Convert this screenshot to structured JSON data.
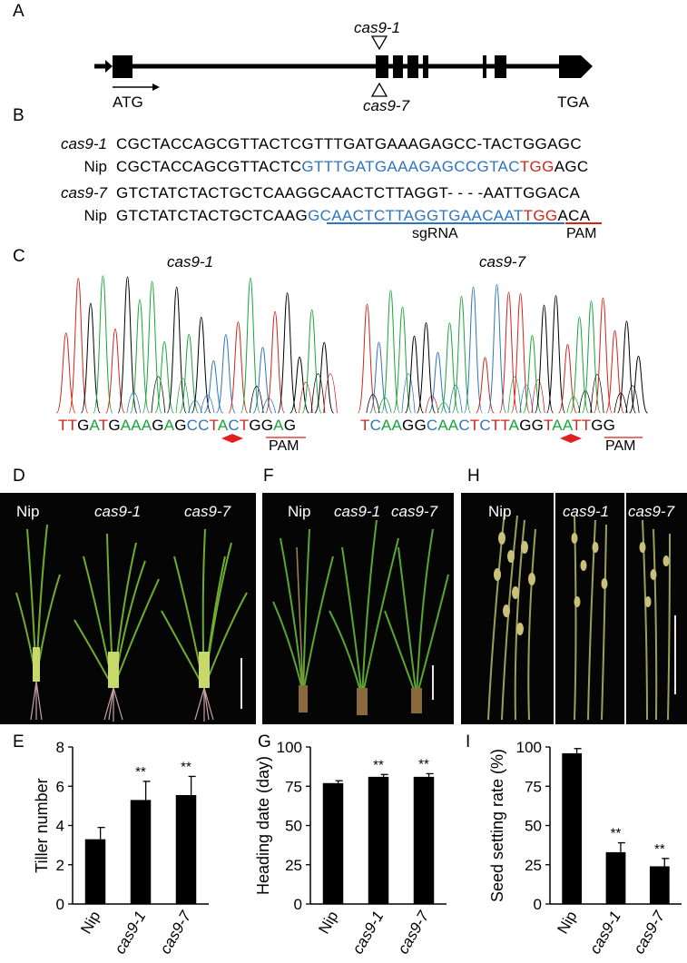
{
  "panels": {
    "A": "A",
    "B": "B",
    "C": "C",
    "D": "D",
    "E": "E",
    "F": "F",
    "G": "G",
    "H": "H",
    "I": "I"
  },
  "gene_model": {
    "mutation_top": "cas9-1",
    "mutation_bottom": "cas9-7",
    "start_label": "ATG",
    "stop_label": "TGA"
  },
  "alignment": {
    "rows": [
      {
        "name": "cas9-1",
        "italic": true,
        "segments": [
          {
            "text": "CGCTACCAGCGTTACTCGTTTGATGAAAGAGCC",
            "color": "black"
          },
          {
            "text": "-",
            "color": "black"
          },
          {
            "text": "TACTGGAGC",
            "color": "black"
          }
        ]
      },
      {
        "name": "Nip",
        "italic": false,
        "segments": [
          {
            "text": "CGCTACCAGCGTTACTC",
            "color": "black"
          },
          {
            "text": "GTTTGATGAAAGAGCCGTAC",
            "color": "blue"
          },
          {
            "text": "TGG",
            "color": "red"
          },
          {
            "text": "AGC",
            "color": "black"
          }
        ]
      },
      {
        "name": "cas9-7",
        "italic": true,
        "segments": [
          {
            "text": "GTCTATCTACTGCTCAAGGCAACTCTTAGGT",
            "color": "black"
          },
          {
            "text": "- - - -",
            "color": "black"
          },
          {
            "text": "AATTGGACA",
            "color": "black"
          }
        ]
      },
      {
        "name": "Nip",
        "italic": false,
        "segments": [
          {
            "text": "GTCTATCTACTGCTCAAG",
            "color": "black"
          },
          {
            "text": "GCAACTCTTAGGTGAACAAT",
            "color": "blue"
          },
          {
            "text": "TGG",
            "color": "red"
          },
          {
            "text": "ACA",
            "color": "black"
          }
        ]
      }
    ],
    "sgrna_label": "sgRNA",
    "pam_label": "PAM"
  },
  "chromatograms": [
    {
      "title": "cas9-1",
      "sequence": [
        {
          "t": "T",
          "c": "red"
        },
        {
          "t": "T",
          "c": "red"
        },
        {
          "t": "G",
          "c": "black"
        },
        {
          "t": "A",
          "c": "green"
        },
        {
          "t": "T",
          "c": "red"
        },
        {
          "t": "G",
          "c": "black"
        },
        {
          "t": "A",
          "c": "green"
        },
        {
          "t": "A",
          "c": "green"
        },
        {
          "t": "A",
          "c": "green"
        },
        {
          "t": "G",
          "c": "black"
        },
        {
          "t": "A",
          "c": "green"
        },
        {
          "t": "G",
          "c": "black"
        },
        {
          "t": "C",
          "c": "blue"
        },
        {
          "t": "C",
          "c": "blue"
        },
        {
          "t": "T",
          "c": "red"
        },
        {
          "t": "A",
          "c": "green"
        },
        {
          "t": "C",
          "c": "blue"
        },
        {
          "t": "T",
          "c": "red"
        },
        {
          "t": "G",
          "c": "black"
        },
        {
          "t": "G",
          "c": "black"
        },
        {
          "t": "A",
          "c": "green"
        },
        {
          "t": "G",
          "c": "black"
        }
      ],
      "pam_label": "PAM"
    },
    {
      "title": "cas9-7",
      "sequence": [
        {
          "t": "T",
          "c": "red"
        },
        {
          "t": "C",
          "c": "blue"
        },
        {
          "t": "A",
          "c": "green"
        },
        {
          "t": "A",
          "c": "green"
        },
        {
          "t": "G",
          "c": "black"
        },
        {
          "t": "G",
          "c": "black"
        },
        {
          "t": "C",
          "c": "blue"
        },
        {
          "t": "A",
          "c": "green"
        },
        {
          "t": "A",
          "c": "green"
        },
        {
          "t": "C",
          "c": "blue"
        },
        {
          "t": "T",
          "c": "red"
        },
        {
          "t": "C",
          "c": "blue"
        },
        {
          "t": "T",
          "c": "red"
        },
        {
          "t": "T",
          "c": "red"
        },
        {
          "t": "A",
          "c": "green"
        },
        {
          "t": "G",
          "c": "black"
        },
        {
          "t": "G",
          "c": "black"
        },
        {
          "t": "T",
          "c": "red"
        },
        {
          "t": "A",
          "c": "green"
        },
        {
          "t": "A",
          "c": "green"
        },
        {
          "t": "T",
          "c": "red"
        },
        {
          "t": "T",
          "c": "red"
        },
        {
          "t": "G",
          "c": "black"
        },
        {
          "t": "G",
          "c": "black"
        }
      ],
      "pam_label": "PAM"
    }
  ],
  "photos": {
    "D": [
      "Nip",
      "cas9-1",
      "cas9-7"
    ],
    "F": [
      "Nip",
      "cas9-1",
      "cas9-7"
    ],
    "H": [
      "Nip",
      "cas9-1",
      "cas9-7"
    ]
  },
  "colors": {
    "blue": "#2e74c0",
    "red": "#d4251b",
    "green": "#1aa53a",
    "bar": "#000000"
  },
  "chart_data": [
    {
      "type": "bar",
      "panel": "E",
      "categories": [
        "Nip",
        "cas9-1",
        "cas9-7"
      ],
      "values": [
        3.3,
        5.3,
        5.55
      ],
      "errors": [
        0.6,
        0.95,
        0.95
      ],
      "significance": [
        "",
        "**",
        "**"
      ],
      "ylabel": "Tiller number",
      "ylim": [
        0,
        8
      ],
      "yticks": [
        0,
        2,
        4,
        6,
        8
      ]
    },
    {
      "type": "bar",
      "panel": "G",
      "categories": [
        "Nip",
        "cas9-1",
        "cas9-7"
      ],
      "values": [
        77,
        81,
        81
      ],
      "errors": [
        1.5,
        1.5,
        2
      ],
      "significance": [
        "",
        "**",
        "**"
      ],
      "ylabel": "Heading date (day)",
      "ylim": [
        0,
        100
      ],
      "yticks": [
        0,
        25,
        50,
        75,
        100
      ]
    },
    {
      "type": "bar",
      "panel": "I",
      "categories": [
        "Nip",
        "cas9-1",
        "cas9-7"
      ],
      "values": [
        96,
        33,
        24
      ],
      "errors": [
        3,
        6,
        5
      ],
      "significance": [
        "",
        "**",
        "**"
      ],
      "ylabel": "Seed setting rate (%)",
      "ylim": [
        0,
        100
      ],
      "yticks": [
        0,
        25,
        50,
        75,
        100
      ]
    }
  ]
}
